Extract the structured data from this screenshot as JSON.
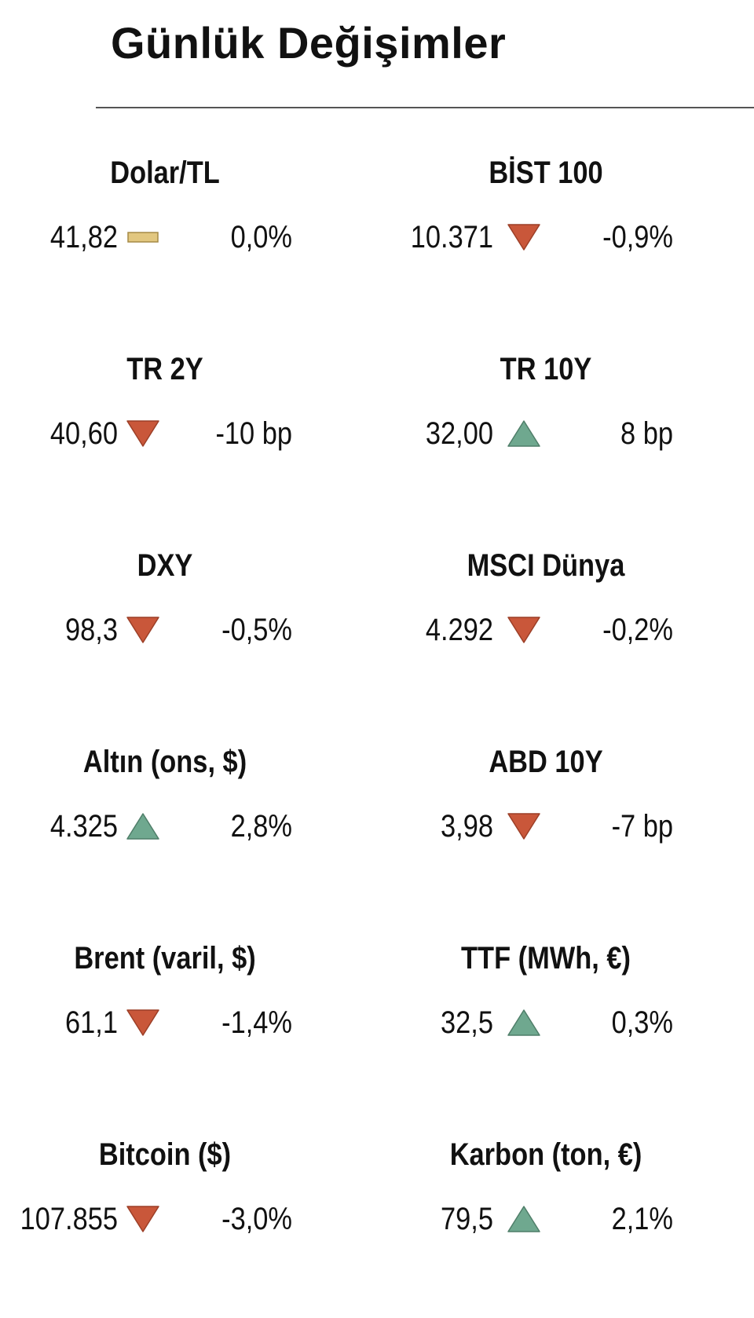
{
  "title": "Günlük Değişimler",
  "colors": {
    "down": "#c9573a",
    "up": "#6fa88f",
    "flat": "#e2c77f"
  },
  "items": [
    {
      "name": "Dolar/TL",
      "value": "41,82",
      "change": "0,0%",
      "direction": "flat",
      "indicator_icon": "flat-bar-icon"
    },
    {
      "name": "BİST 100",
      "value": "10.371",
      "change": "-0,9%",
      "direction": "down",
      "indicator_icon": "down-triangle-icon"
    },
    {
      "name": "TR 2Y",
      "value": "40,60",
      "change": "-10 bp",
      "direction": "down",
      "indicator_icon": "down-triangle-icon"
    },
    {
      "name": "TR 10Y",
      "value": "32,00",
      "change": "8 bp",
      "direction": "up",
      "indicator_icon": "up-triangle-icon"
    },
    {
      "name": "DXY",
      "value": "98,3",
      "change": "-0,5%",
      "direction": "down",
      "indicator_icon": "down-triangle-icon"
    },
    {
      "name": "MSCI Dünya",
      "value": "4.292",
      "change": "-0,2%",
      "direction": "down",
      "indicator_icon": "down-triangle-icon"
    },
    {
      "name": "Altın (ons, $)",
      "value": "4.325",
      "change": "2,8%",
      "direction": "up",
      "indicator_icon": "up-triangle-icon"
    },
    {
      "name": "ABD 10Y",
      "value": "3,98",
      "change": "-7 bp",
      "direction": "down",
      "indicator_icon": "down-triangle-icon"
    },
    {
      "name": "Brent (varil, $)",
      "value": "61,1",
      "change": "-1,4%",
      "direction": "down",
      "indicator_icon": "down-triangle-icon"
    },
    {
      "name": "TTF (MWh, €)",
      "value": "32,5",
      "change": "0,3%",
      "direction": "up",
      "indicator_icon": "up-triangle-icon"
    },
    {
      "name": "Bitcoin ($)",
      "value": "107.855",
      "change": "-3,0%",
      "direction": "down",
      "indicator_icon": "down-triangle-icon"
    },
    {
      "name": "Karbon (ton, €)",
      "value": "79,5",
      "change": "2,1%",
      "direction": "up",
      "indicator_icon": "up-triangle-icon"
    }
  ]
}
